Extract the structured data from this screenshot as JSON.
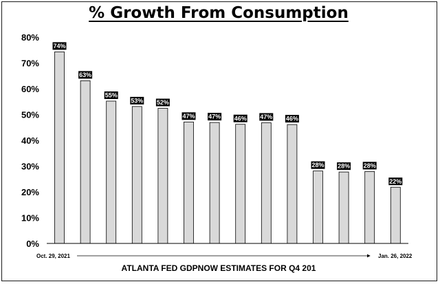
{
  "chart_data": {
    "type": "bar",
    "title": "% Growth From Consumption",
    "xlabel": "ATLANTA FED GDPNOW ESTIMATES FOR Q4 201",
    "ylabel": "",
    "x_start_label": "Oct. 29, 2021",
    "x_end_label": "Jan. 26, 2022",
    "ylim": [
      0,
      80
    ],
    "yticks": [
      0,
      10,
      20,
      30,
      40,
      50,
      60,
      70,
      80
    ],
    "ytick_labels": [
      "0%",
      "10%",
      "20%",
      "30%",
      "40%",
      "50%",
      "60%",
      "70%",
      "80%"
    ],
    "values": [
      74.3,
      63.1,
      55.2,
      53.1,
      52.4,
      47.1,
      46.9,
      46.2,
      46.8,
      46.1,
      28.1,
      27.7,
      27.9,
      21.8
    ],
    "data_labels": [
      "74%",
      "63%",
      "55%",
      "53%",
      "52%",
      "47%",
      "47%",
      "46%",
      "47%",
      "46%",
      "28%",
      "28%",
      "28%",
      "22%"
    ],
    "grid": false,
    "legend": "none",
    "colors": {
      "bar_fill": "#d9d9d9",
      "bar_stroke": "#000000",
      "label_bg": "#000000",
      "label_text": "#ffffff"
    }
  }
}
